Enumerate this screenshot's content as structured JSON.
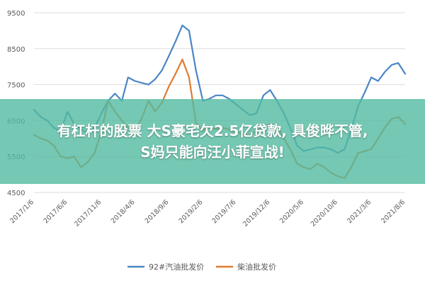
{
  "banner": {
    "line1": "有杠杆的股票 大S豪宅欠2.5亿贷款, 具俊晔不管,",
    "line2": "S妈只能向汪小菲宣战!"
  },
  "chart_data": {
    "type": "line",
    "title": "",
    "xlabel": "",
    "ylabel": "",
    "ylim": [
      4500,
      9500
    ],
    "yticks": [
      4500,
      5500,
      6500,
      7500,
      8500,
      9500
    ],
    "xlim": [
      "2017-01-06",
      "2021-08-06"
    ],
    "xtick_labels": [
      "2017/1/6",
      "2017/6/6",
      "2017/11/6",
      "2018/4/6",
      "2018/9/6",
      "2019/2/6",
      "2019/7/6",
      "2019/12/6",
      "2020/5/6",
      "2020/10/6",
      "2021/3/6",
      "2021/8/6"
    ],
    "grid": "horizontal",
    "legend": "bottom",
    "series": [
      {
        "name": "92#汽油批发价",
        "color": "#4a86c5",
        "points": [
          [
            "2017-01-06",
            6800
          ],
          [
            "2017-02-06",
            6600
          ],
          [
            "2017-03-06",
            6500
          ],
          [
            "2017-04-06",
            6300
          ],
          [
            "2017-05-06",
            6200
          ],
          [
            "2017-06-06",
            6750
          ],
          [
            "2017-07-06",
            6400
          ],
          [
            "2017-08-06",
            6250
          ],
          [
            "2017-09-06",
            6150
          ],
          [
            "2017-10-06",
            6300
          ],
          [
            "2017-11-06",
            6700
          ],
          [
            "2017-12-06",
            7050
          ],
          [
            "2018-01-06",
            7250
          ],
          [
            "2018-02-06",
            7050
          ],
          [
            "2018-03-06",
            7700
          ],
          [
            "2018-04-06",
            7600
          ],
          [
            "2018-05-06",
            7550
          ],
          [
            "2018-06-06",
            7500
          ],
          [
            "2018-07-06",
            7650
          ],
          [
            "2018-08-06",
            7900
          ],
          [
            "2018-09-06",
            8300
          ],
          [
            "2018-10-06",
            8700
          ],
          [
            "2018-11-06",
            9150
          ],
          [
            "2018-12-06",
            9000
          ],
          [
            "2019-01-06",
            7900
          ],
          [
            "2019-02-06",
            7050
          ],
          [
            "2019-03-06",
            7100
          ],
          [
            "2019-04-06",
            7200
          ],
          [
            "2019-05-06",
            7200
          ],
          [
            "2019-06-06",
            7100
          ],
          [
            "2019-07-06",
            6950
          ],
          [
            "2019-08-06",
            6800
          ],
          [
            "2019-09-06",
            6650
          ],
          [
            "2019-10-06",
            6700
          ],
          [
            "2019-11-06",
            7200
          ],
          [
            "2019-12-06",
            7350
          ],
          [
            "2020-01-06",
            7050
          ],
          [
            "2020-02-06",
            6700
          ],
          [
            "2020-03-06",
            6300
          ],
          [
            "2020-04-06",
            5800
          ],
          [
            "2020-05-06",
            5650
          ],
          [
            "2020-06-06",
            5700
          ],
          [
            "2020-07-06",
            5750
          ],
          [
            "2020-08-06",
            5750
          ],
          [
            "2020-09-06",
            5700
          ],
          [
            "2020-10-06",
            5600
          ],
          [
            "2020-11-06",
            5700
          ],
          [
            "2020-12-06",
            6250
          ],
          [
            "2021-01-06",
            6900
          ],
          [
            "2021-02-06",
            7300
          ],
          [
            "2021-03-06",
            7700
          ],
          [
            "2021-04-06",
            7600
          ],
          [
            "2021-05-06",
            7850
          ],
          [
            "2021-06-06",
            8050
          ],
          [
            "2021-07-06",
            8100
          ],
          [
            "2021-08-06",
            7800
          ]
        ]
      },
      {
        "name": "柴油批发价",
        "color": "#e07b2e",
        "points": [
          [
            "2017-01-06",
            6100
          ],
          [
            "2017-02-06",
            6000
          ],
          [
            "2017-03-06",
            5950
          ],
          [
            "2017-04-06",
            5800
          ],
          [
            "2017-05-06",
            5500
          ],
          [
            "2017-06-06",
            5450
          ],
          [
            "2017-07-06",
            5500
          ],
          [
            "2017-08-06",
            5200
          ],
          [
            "2017-09-06",
            5350
          ],
          [
            "2017-10-06",
            5600
          ],
          [
            "2017-11-06",
            6200
          ],
          [
            "2017-12-06",
            7050
          ],
          [
            "2018-01-06",
            6750
          ],
          [
            "2018-02-06",
            6500
          ],
          [
            "2018-03-06",
            6300
          ],
          [
            "2018-04-06",
            6250
          ],
          [
            "2018-05-06",
            6550
          ],
          [
            "2018-06-06",
            7050
          ],
          [
            "2018-07-06",
            6750
          ],
          [
            "2018-08-06",
            7000
          ],
          [
            "2018-09-06",
            7450
          ],
          [
            "2018-10-06",
            7800
          ],
          [
            "2018-11-06",
            8200
          ],
          [
            "2018-12-06",
            7700
          ],
          [
            "2019-01-06",
            6450
          ],
          [
            "2019-02-06",
            6200
          ],
          [
            "2019-03-06",
            6350
          ],
          [
            "2019-04-06",
            6250
          ],
          [
            "2019-05-06",
            6300
          ],
          [
            "2019-06-06",
            6250
          ],
          [
            "2019-07-06",
            6200
          ],
          [
            "2019-08-06",
            6100
          ],
          [
            "2019-09-06",
            6100
          ],
          [
            "2019-10-06",
            6200
          ],
          [
            "2019-11-06",
            6350
          ],
          [
            "2019-12-06",
            6400
          ],
          [
            "2020-01-06",
            6350
          ],
          [
            "2020-02-06",
            6000
          ],
          [
            "2020-03-06",
            5700
          ],
          [
            "2020-04-06",
            5300
          ],
          [
            "2020-05-06",
            5200
          ],
          [
            "2020-06-06",
            5150
          ],
          [
            "2020-07-06",
            5300
          ],
          [
            "2020-08-06",
            5200
          ],
          [
            "2020-09-06",
            5050
          ],
          [
            "2020-10-06",
            4950
          ],
          [
            "2020-11-06",
            4900
          ],
          [
            "2020-12-06",
            5200
          ],
          [
            "2021-01-06",
            5600
          ],
          [
            "2021-02-06",
            5650
          ],
          [
            "2021-03-06",
            5700
          ],
          [
            "2021-04-06",
            6000
          ],
          [
            "2021-05-06",
            6300
          ],
          [
            "2021-06-06",
            6550
          ],
          [
            "2021-07-06",
            6600
          ],
          [
            "2021-08-06",
            6400
          ]
        ]
      }
    ]
  }
}
